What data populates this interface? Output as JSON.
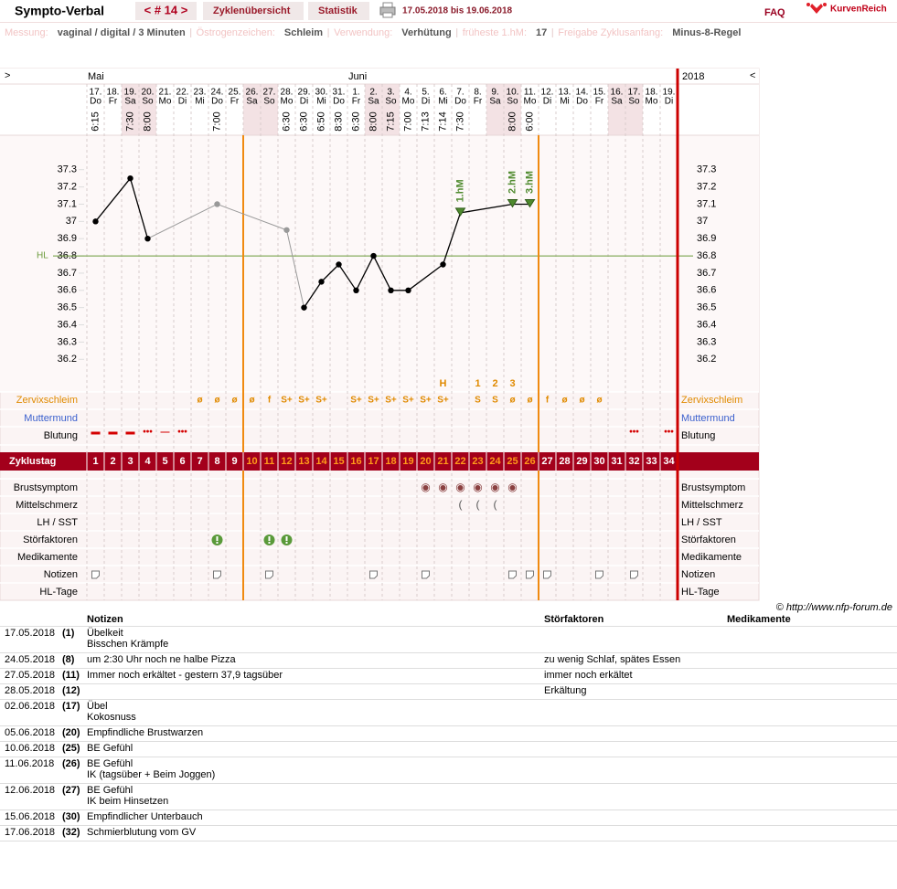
{
  "header": {
    "title": "Sympto-Verbal",
    "cycle": "< # 14 >",
    "nav": [
      "Zyklenübersicht",
      "Statistik"
    ],
    "date_range": "17.05.2018 bis 19.06.2018",
    "faq": "FAQ",
    "brand": "KurvenReich"
  },
  "info": [
    {
      "label": "Messung:",
      "value": "vaginal / digital / 3 Minuten"
    },
    {
      "label": "Östrogenzeichen:",
      "value": "Schleim"
    },
    {
      "label": "Verwendung:",
      "value": "Verhütung"
    },
    {
      "label": "früheste 1.hM:",
      "value": "17"
    },
    {
      "label": "Freigabe Zyklusanfang:",
      "value": "Minus-8-Regel"
    }
  ],
  "chart": {
    "nav_left": ">",
    "nav_right": "<",
    "year": "2018",
    "months": [
      "Mai",
      null,
      null,
      null,
      null,
      null,
      null,
      null,
      null,
      null,
      null,
      null,
      null,
      null,
      null,
      "Juni",
      null,
      null,
      null,
      null,
      null,
      null,
      null,
      null,
      null,
      null,
      null,
      null,
      null,
      null,
      null,
      null,
      null,
      null
    ],
    "days": [
      "17.",
      "18.",
      "19.",
      "20.",
      "21.",
      "22.",
      "23.",
      "24.",
      "25.",
      "26.",
      "27.",
      "28.",
      "29.",
      "30.",
      "31.",
      "1.",
      "2.",
      "3.",
      "4.",
      "5.",
      "6.",
      "7.",
      "8.",
      "9.",
      "10.",
      "11.",
      "12.",
      "13.",
      "14.",
      "15.",
      "16.",
      "17.",
      "18.",
      "19."
    ],
    "weekdays": [
      "Do",
      "Fr",
      "Sa",
      "So",
      "Mo",
      "Di",
      "Mi",
      "Do",
      "Fr",
      "Sa",
      "So",
      "Mo",
      "Di",
      "Mi",
      "Do",
      "Fr",
      "Sa",
      "So",
      "Mo",
      "Di",
      "Mi",
      "Do",
      "Fr",
      "Sa",
      "So",
      "Mo",
      "Di",
      "Mi",
      "Do",
      "Fr",
      "Sa",
      "So",
      "Mo",
      "Di"
    ],
    "times": [
      "6:15",
      null,
      "7:30",
      "8:00",
      null,
      null,
      null,
      "7:00",
      null,
      null,
      null,
      "6:30",
      "6:30",
      "6:50",
      "8:30",
      "6:30",
      "8:00",
      "7:15",
      "7:00",
      "7:13",
      "7:14",
      "7:30",
      null,
      null,
      "8:00",
      "6:00",
      null,
      null,
      null,
      null,
      null,
      null,
      null,
      null
    ],
    "ylim": [
      36.0,
      37.5
    ],
    "yticks": [
      36.2,
      36.3,
      36.4,
      36.5,
      36.6,
      36.7,
      36.8,
      36.9,
      37,
      37.1,
      37.2,
      37.3
    ],
    "hl": {
      "label": "HL",
      "value": 36.8,
      "color": "#6a9a3a"
    },
    "temperature": {
      "values": [
        37.0,
        null,
        37.25,
        36.9,
        null,
        null,
        null,
        37.1,
        null,
        null,
        null,
        36.95,
        36.5,
        36.65,
        36.75,
        36.6,
        36.8,
        36.6,
        36.6,
        null,
        36.75,
        37.05,
        null,
        null,
        37.1,
        37.1,
        null,
        null,
        null,
        null,
        null,
        null,
        null,
        null
      ],
      "colors": [
        "#000",
        "#000",
        "#000",
        "#000",
        "#000",
        "#000",
        "#000",
        "#999",
        "#000",
        "#000",
        "#000",
        "#999",
        "#000",
        "#000",
        "#000",
        "#000",
        "#000",
        "#000",
        "#000",
        "#000",
        "#000",
        "#000",
        "#000",
        "#000",
        "#000",
        "#000",
        "#000",
        "#000",
        "#000",
        "#000",
        "#000",
        "#000",
        "#000",
        "#000"
      ]
    },
    "hm_labels": [
      null,
      null,
      null,
      null,
      null,
      null,
      null,
      null,
      null,
      null,
      null,
      null,
      null,
      null,
      null,
      null,
      null,
      null,
      null,
      null,
      null,
      "1.hM",
      null,
      null,
      "2.hM",
      "3.hM",
      null,
      null,
      null,
      null,
      null,
      null,
      null,
      null
    ],
    "hm_color": "#4f8a2e",
    "rows": [
      {
        "label": "Zervixschleim",
        "color": "#e08a00"
      },
      {
        "label": "Muttermund",
        "color": "#3a5fcd"
      },
      {
        "label": "Blutung",
        "color": "#000"
      },
      {
        "label": "Zyklustag",
        "color": "#fff"
      },
      {
        "label": "Brustsymptom",
        "color": "#000"
      },
      {
        "label": "Mittelschmerz",
        "color": "#000"
      },
      {
        "label": "LH / SST",
        "color": "#000"
      },
      {
        "label": "Störfaktoren",
        "color": "#000"
      },
      {
        "label": "Medikamente",
        "color": "#000"
      },
      {
        "label": "Notizen",
        "color": "#000"
      },
      {
        "label": "HL-Tage",
        "color": "#000"
      }
    ],
    "zervix": {
      "symbols": [
        null,
        null,
        null,
        null,
        null,
        null,
        "ø",
        "ø",
        "ø",
        "ø",
        "f",
        "S+",
        "S+",
        "S+",
        null,
        "S+",
        "S+",
        "S+",
        "S+",
        "S+",
        "S+",
        null,
        "S",
        "S",
        "ø",
        "ø",
        "f",
        "ø",
        "ø",
        "ø",
        null,
        null,
        null,
        null
      ],
      "peak": [
        null,
        null,
        null,
        null,
        null,
        null,
        null,
        null,
        null,
        null,
        null,
        null,
        null,
        null,
        null,
        null,
        null,
        null,
        null,
        null,
        "H",
        null,
        "1",
        "2",
        "3",
        null,
        null,
        null,
        null,
        null,
        null,
        null,
        null,
        null
      ],
      "color": "#e08a00"
    },
    "blutung": {
      "symbols": [
        "▬",
        "▬",
        "▬",
        "•••",
        "—",
        "•••",
        null,
        null,
        null,
        null,
        null,
        null,
        null,
        null,
        null,
        null,
        null,
        null,
        null,
        null,
        null,
        null,
        null,
        null,
        null,
        null,
        null,
        null,
        null,
        null,
        null,
        "•••",
        null,
        "•••"
      ],
      "color": "#d40000"
    },
    "zyklustag": {
      "values": [
        1,
        2,
        3,
        4,
        5,
        6,
        7,
        8,
        9,
        10,
        11,
        12,
        13,
        14,
        15,
        16,
        17,
        18,
        19,
        20,
        21,
        22,
        23,
        24,
        25,
        26,
        27,
        28,
        29,
        30,
        31,
        32,
        33,
        34
      ],
      "colors": [
        "#fff",
        "#fff",
        "#fff",
        "#fff",
        "#fff",
        "#fff",
        "#fff",
        "#fff",
        "#fff",
        "#ff9a1a",
        "#ff9a1a",
        "#ff9a1a",
        "#ff9a1a",
        "#ff9a1a",
        "#ff9a1a",
        "#ff9a1a",
        "#ff9a1a",
        "#ff9a1a",
        "#ff9a1a",
        "#ff9a1a",
        "#ff9a1a",
        "#ff9a1a",
        "#ff9a1a",
        "#ff9a1a",
        "#ff9a1a",
        "#ff9a1a",
        "#fff",
        "#fff",
        "#fff",
        "#fff",
        "#fff",
        "#fff",
        "#fff",
        "#fff"
      ]
    },
    "brust": [
      null,
      null,
      null,
      null,
      null,
      null,
      null,
      null,
      null,
      null,
      null,
      null,
      null,
      null,
      null,
      null,
      null,
      null,
      null,
      "◉",
      "◉",
      "◉",
      "◉",
      "◉",
      "◉",
      null,
      null,
      null,
      null,
      null,
      null,
      null,
      null,
      null
    ],
    "mittelschmerz": [
      null,
      null,
      null,
      null,
      null,
      null,
      null,
      null,
      null,
      null,
      null,
      null,
      null,
      null,
      null,
      null,
      null,
      null,
      null,
      null,
      null,
      "(",
      "(",
      "(",
      null,
      null,
      null,
      null,
      null,
      null,
      null,
      null,
      null,
      null
    ],
    "copyright": "© http://www.nfp-forum.de"
  },
  "notes": {
    "headers": [
      "Notizen",
      "Störfaktoren",
      "Medikamente"
    ],
    "rows": [
      {
        "date": "17.05.2018",
        "day": "(1)",
        "notes": [
          "Übelkeit",
          "Bisschen Krämpfe"
        ]
      },
      {
        "date": "24.05.2018",
        "day": "(8)",
        "notes": [
          "um 2:30 Uhr noch ne halbe Pizza"
        ],
        "stoer": "zu wenig Schlaf, spätes Essen"
      },
      {
        "date": "27.05.2018",
        "day": "(11)",
        "notes": [
          "Immer noch erkältet - gestern 37,9 tagsüber"
        ],
        "stoer": "immer noch erkältet"
      },
      {
        "date": "28.05.2018",
        "day": "(12)",
        "notes": [],
        "stoer": "Erkältung"
      },
      {
        "date": "02.06.2018",
        "day": "(17)",
        "notes": [
          "Übel",
          "Kokosnuss"
        ]
      },
      {
        "date": "05.06.2018",
        "day": "(20)",
        "notes": [
          "Empfindliche Brustwarzen"
        ]
      },
      {
        "date": "10.06.2018",
        "day": "(25)",
        "notes": [
          "BE Gefühl"
        ]
      },
      {
        "date": "11.06.2018",
        "day": "(26)",
        "notes": [
          "BE Gefühl",
          "IK (tagsüber + Beim Joggen)"
        ]
      },
      {
        "date": "12.06.2018",
        "day": "(27)",
        "notes": [
          "BE Gefühl",
          "IK beim Hinsetzen"
        ]
      },
      {
        "date": "15.06.2018",
        "day": "(30)",
        "notes": [
          "Empfindlicher Unterbauch"
        ]
      },
      {
        "date": "17.06.2018",
        "day": "(32)",
        "notes": [
          "Schmierblutung vom GV"
        ]
      }
    ]
  }
}
